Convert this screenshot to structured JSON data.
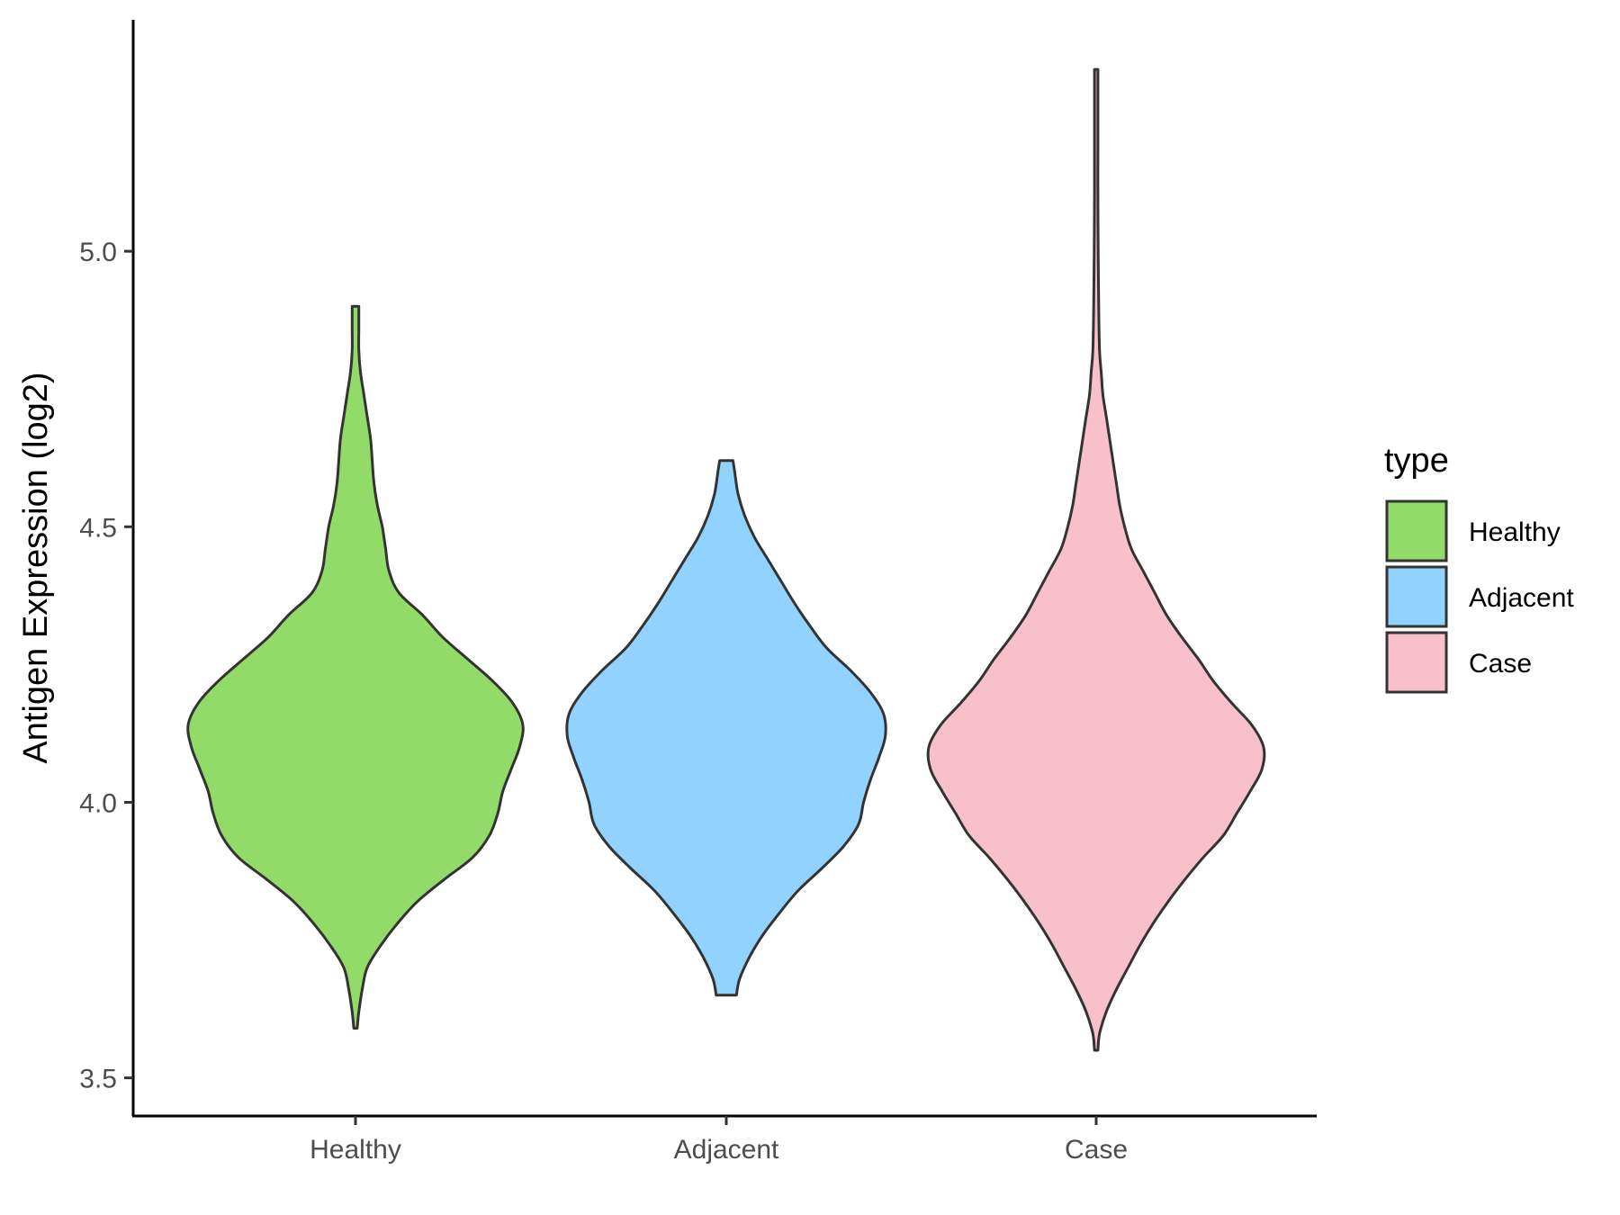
{
  "chart_data": {
    "type": "violin",
    "title": "",
    "xlabel": "",
    "ylabel": "Antigen Expression (log2)",
    "ylim": [
      3.47,
      5.42
    ],
    "yticks": [
      3.5,
      4.0,
      4.5,
      5.0
    ],
    "ytick_labels": [
      "3.5",
      "4.0",
      "4.5",
      "5.0"
    ],
    "categories": [
      "Healthy",
      "Adjacent",
      "Case"
    ],
    "legend": {
      "title": "type",
      "position": "right",
      "entries": [
        "Healthy",
        "Adjacent",
        "Case"
      ]
    },
    "grid": false,
    "series": [
      {
        "name": "Healthy",
        "color": "#93db69",
        "min": 3.59,
        "max": 4.9,
        "density_profile": [
          [
            3.59,
            0.01
          ],
          [
            3.62,
            0.02
          ],
          [
            3.66,
            0.04
          ],
          [
            3.7,
            0.07
          ],
          [
            3.74,
            0.15
          ],
          [
            3.78,
            0.25
          ],
          [
            3.82,
            0.37
          ],
          [
            3.86,
            0.53
          ],
          [
            3.9,
            0.7
          ],
          [
            3.94,
            0.8
          ],
          [
            3.98,
            0.85
          ],
          [
            4.02,
            0.88
          ],
          [
            4.06,
            0.93
          ],
          [
            4.1,
            0.98
          ],
          [
            4.14,
            1.0
          ],
          [
            4.18,
            0.94
          ],
          [
            4.22,
            0.82
          ],
          [
            4.26,
            0.67
          ],
          [
            4.3,
            0.52
          ],
          [
            4.34,
            0.4
          ],
          [
            4.38,
            0.26
          ],
          [
            4.42,
            0.2
          ],
          [
            4.46,
            0.18
          ],
          [
            4.5,
            0.16
          ],
          [
            4.54,
            0.13
          ],
          [
            4.58,
            0.11
          ],
          [
            4.62,
            0.1
          ],
          [
            4.66,
            0.09
          ],
          [
            4.7,
            0.07
          ],
          [
            4.74,
            0.05
          ],
          [
            4.78,
            0.03
          ],
          [
            4.82,
            0.02
          ],
          [
            4.86,
            0.02
          ],
          [
            4.9,
            0.02
          ]
        ]
      },
      {
        "name": "Adjacent",
        "color": "#92d2fe",
        "min": 3.65,
        "max": 4.62,
        "density_profile": [
          [
            3.65,
            0.06
          ],
          [
            3.68,
            0.08
          ],
          [
            3.72,
            0.14
          ],
          [
            3.76,
            0.22
          ],
          [
            3.8,
            0.32
          ],
          [
            3.84,
            0.43
          ],
          [
            3.88,
            0.57
          ],
          [
            3.92,
            0.7
          ],
          [
            3.96,
            0.79
          ],
          [
            4.0,
            0.82
          ],
          [
            4.04,
            0.86
          ],
          [
            4.08,
            0.91
          ],
          [
            4.12,
            0.95
          ],
          [
            4.16,
            0.94
          ],
          [
            4.2,
            0.86
          ],
          [
            4.24,
            0.74
          ],
          [
            4.28,
            0.6
          ],
          [
            4.32,
            0.5
          ],
          [
            4.36,
            0.41
          ],
          [
            4.4,
            0.33
          ],
          [
            4.44,
            0.25
          ],
          [
            4.48,
            0.17
          ],
          [
            4.52,
            0.11
          ],
          [
            4.56,
            0.07
          ],
          [
            4.6,
            0.05
          ],
          [
            4.62,
            0.04
          ]
        ]
      },
      {
        "name": "Case",
        "color": "#f7c0cb",
        "min": 3.55,
        "max": 5.33,
        "density_profile": [
          [
            3.55,
            0.01
          ],
          [
            3.58,
            0.02
          ],
          [
            3.62,
            0.06
          ],
          [
            3.66,
            0.12
          ],
          [
            3.7,
            0.19
          ],
          [
            3.74,
            0.26
          ],
          [
            3.78,
            0.34
          ],
          [
            3.82,
            0.43
          ],
          [
            3.86,
            0.53
          ],
          [
            3.9,
            0.64
          ],
          [
            3.94,
            0.76
          ],
          [
            3.98,
            0.84
          ],
          [
            4.02,
            0.92
          ],
          [
            4.06,
            0.99
          ],
          [
            4.1,
            1.0
          ],
          [
            4.14,
            0.93
          ],
          [
            4.18,
            0.81
          ],
          [
            4.22,
            0.7
          ],
          [
            4.26,
            0.61
          ],
          [
            4.3,
            0.51
          ],
          [
            4.34,
            0.42
          ],
          [
            4.38,
            0.35
          ],
          [
            4.42,
            0.28
          ],
          [
            4.46,
            0.21
          ],
          [
            4.5,
            0.17
          ],
          [
            4.54,
            0.14
          ],
          [
            4.58,
            0.12
          ],
          [
            4.62,
            0.1
          ],
          [
            4.66,
            0.08
          ],
          [
            4.7,
            0.06
          ],
          [
            4.74,
            0.04
          ],
          [
            4.78,
            0.03
          ],
          [
            4.82,
            0.02
          ],
          [
            4.9,
            0.015
          ],
          [
            5.0,
            0.012
          ],
          [
            5.1,
            0.01
          ],
          [
            5.2,
            0.01
          ],
          [
            5.3,
            0.01
          ],
          [
            5.33,
            0.01
          ]
        ]
      }
    ]
  }
}
